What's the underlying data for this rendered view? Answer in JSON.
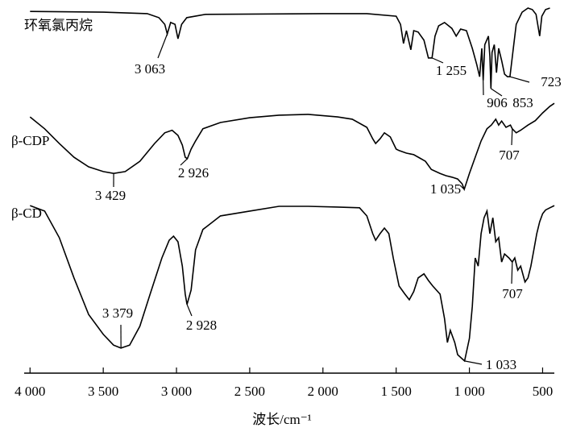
{
  "chart_data": {
    "type": "line",
    "x_label": "波长/cm⁻¹",
    "xlim": [
      4040,
      420
    ],
    "ylim": [
      0,
      100
    ],
    "xticks": [
      {
        "value": 4000,
        "label": "4 000"
      },
      {
        "value": 3500,
        "label": "3 500"
      },
      {
        "value": 3000,
        "label": "3 000"
      },
      {
        "value": 2500,
        "label": "2 500"
      },
      {
        "value": 2000,
        "label": "2 000"
      },
      {
        "value": 1500,
        "label": "1 500"
      },
      {
        "value": 1000,
        "label": "1 000"
      },
      500
    ],
    "series": [
      {
        "name": "环氧氯丙烷",
        "color": "#000000",
        "x": [
          4000,
          3500,
          3200,
          3120,
          3080,
          3063,
          3040,
          3010,
          2990,
          2965,
          2930,
          2800,
          2000,
          1700,
          1500,
          1470,
          1450,
          1430,
          1400,
          1380,
          1350,
          1310,
          1280,
          1255,
          1235,
          1210,
          1170,
          1120,
          1090,
          1060,
          1020,
          980,
          950,
          930,
          915,
          906,
          895,
          870,
          860,
          853,
          845,
          830,
          815,
          800,
          780,
          760,
          740,
          723,
          700,
          680,
          640,
          600,
          570,
          545,
          520,
          505,
          480,
          450
        ],
        "values": [
          98,
          97.8,
          97.4,
          96.3,
          94.5,
          91.9,
          95,
          94.5,
          90.6,
          94.5,
          96.3,
          97.2,
          97.4,
          97.4,
          96.7,
          94.5,
          89.3,
          92.8,
          87.6,
          92.8,
          92.4,
          90.2,
          85.4,
          85.4,
          91.3,
          94.1,
          95,
          93.4,
          91.3,
          93.2,
          92.8,
          88,
          83.6,
          80.3,
          88,
          79.3,
          89,
          91.3,
          85.8,
          77.1,
          86.9,
          89,
          81.4,
          88,
          84.7,
          81,
          80.3,
          80.3,
          88,
          94.5,
          97.8,
          98.9,
          98.5,
          97.2,
          91.3,
          96.7,
          98.5,
          98.9
        ]
      },
      {
        "name": "β-CDP",
        "color": "#000000",
        "x": [
          4000,
          3900,
          3800,
          3700,
          3600,
          3500,
          3429,
          3350,
          3250,
          3150,
          3080,
          3030,
          2990,
          2960,
          2940,
          2926,
          2900,
          2870,
          2820,
          2700,
          2500,
          2300,
          2100,
          1900,
          1800,
          1700,
          1660,
          1640,
          1610,
          1580,
          1540,
          1500,
          1480,
          1430,
          1380,
          1340,
          1300,
          1260,
          1200,
          1160,
          1120,
          1080,
          1050,
          1035,
          1000,
          960,
          920,
          880,
          850,
          820,
          800,
          780,
          750,
          720,
          707,
          680,
          650,
          600,
          550,
          500,
          450,
          420
        ],
        "values": [
          69.4,
          66.2,
          62.2,
          58.5,
          55.9,
          54.6,
          54.1,
          54.6,
          57.4,
          62.2,
          65.1,
          65.8,
          64.4,
          61.8,
          58.5,
          58.1,
          60.7,
          62.9,
          66.2,
          67.9,
          69.2,
          69.9,
          70.1,
          69.4,
          68.8,
          66.6,
          63.5,
          62.2,
          63.5,
          65.1,
          64,
          60.7,
          60.3,
          59.6,
          59.2,
          58.3,
          57.4,
          55.2,
          54.1,
          53.5,
          53.1,
          52.6,
          51.3,
          49.8,
          54.1,
          58.5,
          62.9,
          66.2,
          67.2,
          68.8,
          67.2,
          68.3,
          66.6,
          67.2,
          66.2,
          65.1,
          65.8,
          67.2,
          68.4,
          70.5,
          72.3,
          73.1
        ]
      },
      {
        "name": "β-CD",
        "color": "#000000",
        "x": [
          4000,
          3900,
          3800,
          3700,
          3600,
          3500,
          3430,
          3379,
          3320,
          3250,
          3180,
          3100,
          3050,
          3020,
          2990,
          2960,
          2940,
          2928,
          2900,
          2870,
          2820,
          2700,
          2500,
          2300,
          2100,
          1900,
          1750,
          1700,
          1660,
          1640,
          1610,
          1580,
          1550,
          1520,
          1480,
          1440,
          1410,
          1380,
          1350,
          1310,
          1280,
          1250,
          1200,
          1170,
          1150,
          1130,
          1100,
          1080,
          1050,
          1033,
          1000,
          980,
          960,
          940,
          920,
          900,
          880,
          860,
          840,
          820,
          800,
          780,
          760,
          730,
          707,
          690,
          670,
          650,
          620,
          600,
          580,
          560,
          540,
          520,
          500,
          480,
          450,
          420
        ],
        "values": [
          45.4,
          43.9,
          36.7,
          25.8,
          15.9,
          10.5,
          7.6,
          6.8,
          7.6,
          12.7,
          21.4,
          31.2,
          36,
          37.1,
          35.6,
          29,
          21.4,
          18.6,
          22.5,
          33.4,
          38.9,
          42.6,
          43.9,
          45.2,
          45.2,
          45,
          44.8,
          42.6,
          37.8,
          36,
          37.8,
          39.3,
          37.8,
          31.2,
          23.6,
          21.4,
          19.9,
          22.1,
          25.8,
          26.9,
          25.1,
          23.6,
          21.4,
          14.8,
          8.3,
          11.6,
          8.3,
          5,
          3.9,
          3.3,
          9.4,
          18.1,
          31.2,
          29,
          37.8,
          42.1,
          43.9,
          37.8,
          42.1,
          35.6,
          36.7,
          30.1,
          32.3,
          31.2,
          30.1,
          31.2,
          27.9,
          29,
          24.7,
          25.8,
          29,
          33.4,
          37.8,
          41,
          43.2,
          44.2,
          44.8,
          45.4
        ]
      }
    ],
    "annotations": [
      {
        "text": "3 063",
        "x": 3063,
        "y": 91.9
      },
      {
        "text": "1 255",
        "x": 1255,
        "y": 85.4
      },
      {
        "text": "906",
        "x": 906,
        "y": 79.3
      },
      {
        "text": "853",
        "x": 853,
        "y": 77.1
      },
      {
        "text": "723",
        "x": 723,
        "y": 80.3
      },
      {
        "text": "3 429",
        "x": 3429,
        "y": 54.1
      },
      {
        "text": "2 926",
        "x": 2926,
        "y": 58.1
      },
      {
        "text": "1 035",
        "x": 1035,
        "y": 49.8
      },
      {
        "text": "707",
        "x": 707,
        "y": 66.2
      },
      {
        "text": "3 379",
        "x": 3379,
        "y": 6.8
      },
      {
        "text": "2 928",
        "x": 2928,
        "y": 18.6
      },
      {
        "text": "1 033",
        "x": 1033,
        "y": 3.3
      },
      {
        "text": "707",
        "x": 707,
        "y": 30.1
      }
    ]
  }
}
